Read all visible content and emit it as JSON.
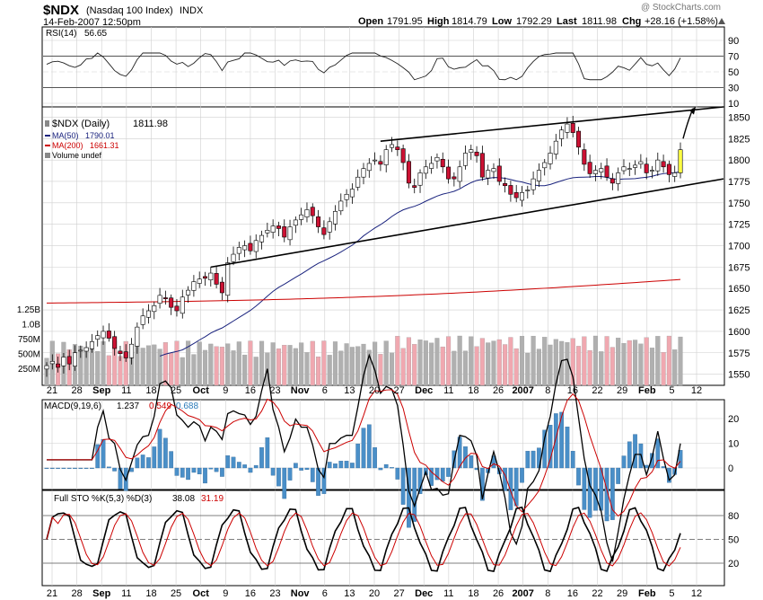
{
  "header": {
    "symbol": "$NDX",
    "name": "(Nasdaq 100 Index)",
    "exchange": "INDX",
    "datetime": "14-Feb-2007 12:50pm",
    "watermark": "@ StockCharts.com",
    "open_label": "Open",
    "open": "1791.95",
    "high_label": "High",
    "high": "1814.79",
    "low_label": "Low",
    "low": "1792.29",
    "last_label": "Last",
    "last": "1811.98",
    "chg_label": "Chg",
    "chg": "+28.16 (+1.58%)"
  },
  "rsi": {
    "label": "RSI(14)",
    "value": "56.65"
  },
  "price_legend": {
    "title": "$NDX (Daily)",
    "title_value": "1811.98",
    "ma50_label": "MA(50)",
    "ma50_value": "1790.01",
    "ma200_label": "MA(200)",
    "ma200_value": "1661.31",
    "volume_label": "Volume undef"
  },
  "macd": {
    "label": "MACD(9,19,6)",
    "v1": "1.237",
    "v2": "0.549",
    "v3": "0.688"
  },
  "sto": {
    "label": "Full STO %K(5,3) %D(3)",
    "k": "38.08",
    "d": "31.19"
  },
  "colors": {
    "up": "#ffffff",
    "down": "#cc1133",
    "ma50": "#1a237e",
    "ma200": "#cc0000",
    "vol_up": "#b0b0b0",
    "vol_down": "#f0a8b0",
    "hist": "#4a8fc8",
    "highlight": "#ffff44",
    "rsi_fill": "#6a8a5a"
  },
  "chart_data": {
    "type": "candlestick",
    "date_labels": [
      "21",
      "28",
      "Sep",
      "11",
      "18",
      "25",
      "Oct",
      "9",
      "16",
      "23",
      "Nov",
      "6",
      "13",
      "20",
      "27",
      "Dec",
      "11",
      "18",
      "26",
      "2007",
      "8",
      "16",
      "22",
      "29",
      "Feb",
      "5",
      "12"
    ],
    "closes": [
      1560,
      1565,
      1558,
      1570,
      1562,
      1575,
      1578,
      1581,
      1588,
      1595,
      1600,
      1592,
      1580,
      1574,
      1569,
      1585,
      1605,
      1618,
      1624,
      1630,
      1642,
      1638,
      1628,
      1624,
      1640,
      1648,
      1658,
      1661,
      1662,
      1668,
      1655,
      1645,
      1680,
      1690,
      1698,
      1700,
      1694,
      1706,
      1712,
      1718,
      1723,
      1720,
      1710,
      1722,
      1730,
      1736,
      1742,
      1735,
      1722,
      1713,
      1728,
      1740,
      1752,
      1760,
      1766,
      1780,
      1790,
      1796,
      1800,
      1795,
      1812,
      1818,
      1812,
      1797,
      1773,
      1768,
      1785,
      1792,
      1796,
      1803,
      1792,
      1778,
      1778,
      1792,
      1808,
      1812,
      1805,
      1780,
      1788,
      1790,
      1775,
      1770,
      1760,
      1756,
      1762,
      1765,
      1778,
      1788,
      1797,
      1808,
      1822,
      1835,
      1842,
      1832,
      1815,
      1795,
      1784,
      1788,
      1790,
      1780,
      1773,
      1785,
      1792,
      1790,
      1794,
      1798,
      1785,
      1788,
      1800,
      1792,
      1783,
      1785,
      1812
    ],
    "y_axis_price": [
      1550,
      1575,
      1600,
      1625,
      1650,
      1675,
      1700,
      1725,
      1750,
      1775,
      1800,
      1825,
      1850
    ],
    "y_axis_volume": [
      "1.25B",
      "1.0B",
      "750M",
      "500M",
      "250M"
    ],
    "rsi_ticks": [
      90,
      70,
      50,
      30,
      10
    ],
    "macd_ticks": [
      20,
      10,
      0
    ],
    "sto_ticks": [
      80,
      50,
      20
    ],
    "ma50_value": 1790.01,
    "ma200_value": 1661.31
  }
}
